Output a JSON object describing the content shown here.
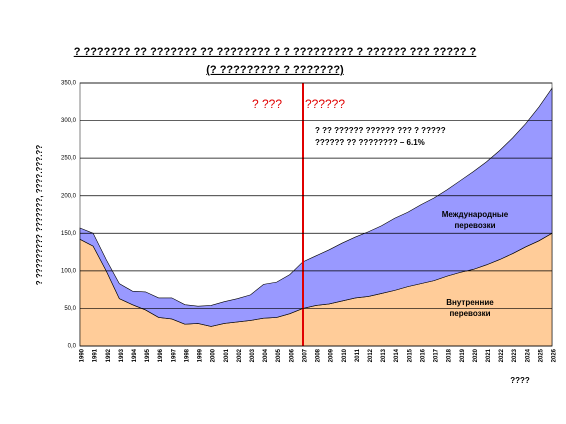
{
  "chart_data": {
    "type": "stacked_area",
    "title": "? ??????? ?? ??????? ?? ???????? ? ? ????????? ? ?????? ??? ????? ?",
    "subtitle": "(? ????????? ? ???????)",
    "y_label": "? ????????? ???????, ????.???.??",
    "x_label": "????",
    "annotations": [
      "? ???",
      "??????",
      "? ?? ?????? ?????? ??? ? ?????",
      "?????? ?? ???????? – 6.1%"
    ],
    "categories": [
      "1990",
      "1991",
      "1992",
      "1993",
      "1994",
      "1995",
      "1996",
      "1997",
      "1998",
      "1999",
      "2000",
      "2001",
      "2002",
      "2003",
      "2004",
      "2005",
      "2006",
      "2007",
      "2008",
      "2009",
      "2010",
      "2011",
      "2012",
      "2013",
      "2014",
      "2015",
      "2016",
      "2017",
      "2018",
      "2019",
      "2020",
      "2021",
      "2022",
      "2023",
      "2024",
      "2025",
      "2026"
    ],
    "series": [
      {
        "name": "Внутренние перевозки",
        "label_lines": [
          "Внутренние",
          "перевозки"
        ],
        "color": "#ffcc99",
        "values": [
          142,
          133,
          100,
          63,
          55,
          48,
          38,
          36,
          29,
          30,
          26,
          30,
          32,
          34,
          37,
          38,
          43,
          50,
          54,
          56,
          60,
          64,
          66,
          70,
          74,
          79,
          83,
          87,
          93,
          98,
          102,
          108,
          115,
          123,
          132,
          140,
          150
        ]
      },
      {
        "name": "Международные перевозки",
        "label_lines": [
          "Международные",
          "перевозки"
        ],
        "color": "#9999ff",
        "values": [
          15,
          17,
          15,
          20,
          18,
          24,
          26,
          28,
          26,
          23,
          28,
          29,
          31,
          34,
          45,
          47,
          52,
          62,
          66,
          72,
          77,
          81,
          86,
          90,
          96,
          99,
          105,
          110,
          115,
          122,
          130,
          137,
          145,
          154,
          164,
          178,
          193
        ]
      }
    ],
    "ylim": [
      0,
      350
    ],
    "yticks": [
      {
        "value": 0,
        "label": "0,0"
      },
      {
        "value": 50,
        "label": "50,0"
      },
      {
        "value": 100,
        "label": "100,0"
      },
      {
        "value": 150,
        "label": "150,0"
      },
      {
        "value": 200,
        "label": "200,0"
      },
      {
        "value": 250,
        "label": "250,0"
      },
      {
        "value": 300,
        "label": "300,0"
      },
      {
        "value": 350,
        "label": "350,0"
      }
    ],
    "grid": true
  }
}
